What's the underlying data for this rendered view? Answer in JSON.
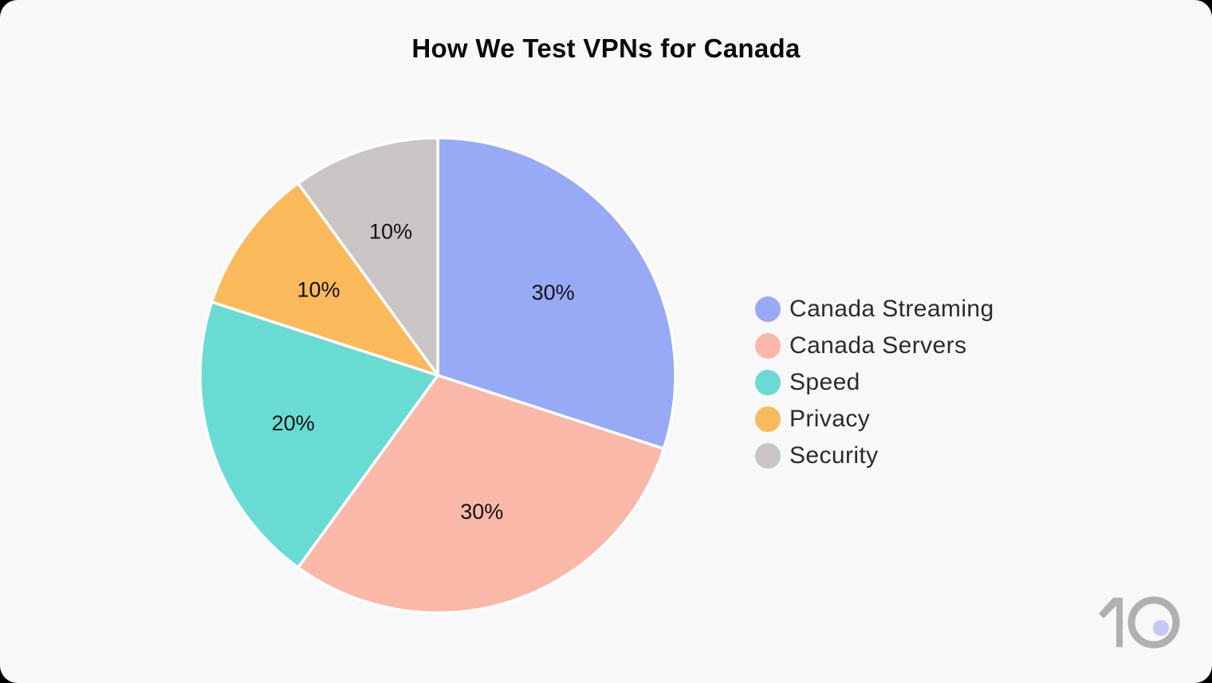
{
  "title": "How We Test VPNs for Canada",
  "chart_data": {
    "type": "pie",
    "title": "How We Test VPNs for Canada",
    "categories": [
      "Canada Streaming",
      "Canada Servers",
      "Speed",
      "Privacy",
      "Security"
    ],
    "values": [
      30,
      30,
      20,
      10,
      10
    ],
    "labels": [
      "30%",
      "30%",
      "20%",
      "10%",
      "10%"
    ],
    "colors": [
      "#98aaf6",
      "#f9b8a8",
      "#68dbd2",
      "#fab95b",
      "#c9c5c4"
    ],
    "start_angle": "12 o'clock, clockwise",
    "legend_position": "right"
  },
  "legend": {
    "items": [
      {
        "label": "Canada Streaming",
        "color": "#98aaf6"
      },
      {
        "label": "Canada Servers",
        "color": "#f9b8a8"
      },
      {
        "label": "Speed",
        "color": "#68dbd2"
      },
      {
        "label": "Privacy",
        "color": "#fab95b"
      },
      {
        "label": "Security",
        "color": "#c9c5c4"
      }
    ]
  },
  "logo": {
    "text": "10",
    "dot_color": "#c5c8f5",
    "color": "#b0b0b0"
  }
}
